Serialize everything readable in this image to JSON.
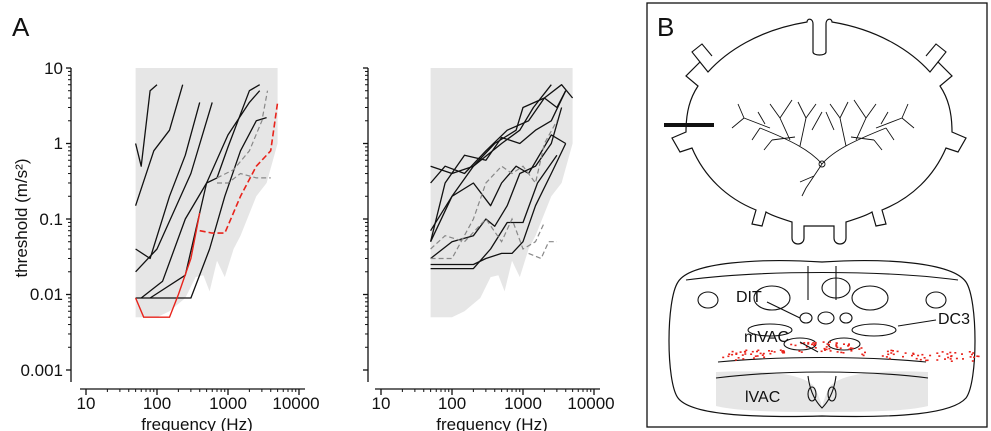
{
  "panel_a": {
    "letter": "A",
    "ylabel": "threshold (m/s²)",
    "xlabel": "frequency (Hz)",
    "y_tick_labels": [
      "10",
      "1",
      "0.1",
      "0.01",
      "0.001"
    ],
    "x_tick_labels": [
      "10",
      "100",
      "1000",
      "10000"
    ]
  },
  "panel_b": {
    "letter": "B",
    "labels": {
      "dit": "DIT",
      "dc3": "DC3",
      "mvac": "mVAC",
      "lvac": "lVAC"
    }
  },
  "colors": {
    "black": "#111111",
    "red": "#e8231b",
    "gray": "#888888",
    "shade": "#e6e6e6"
  },
  "chart_data": [
    {
      "type": "line",
      "title": "",
      "xlabel": "frequency (Hz)",
      "ylabel": "threshold (m/s²)",
      "x_scale": "log",
      "y_scale": "log",
      "xlim": [
        10,
        10000
      ],
      "ylim": [
        0.001,
        10
      ],
      "x_ticks": [
        10,
        100,
        1000,
        10000
      ],
      "y_ticks": [
        0.001,
        0.01,
        0.1,
        1,
        10
      ],
      "shaded_region": [
        [
          50,
          10
        ],
        [
          5000,
          10
        ],
        [
          5000,
          1
        ],
        [
          3500,
          0.3
        ],
        [
          2500,
          0.2
        ],
        [
          1500,
          0.06
        ],
        [
          1200,
          0.04
        ],
        [
          900,
          0.017
        ],
        [
          700,
          0.028
        ],
        [
          550,
          0.011
        ],
        [
          450,
          0.018
        ],
        [
          350,
          0.017
        ],
        [
          250,
          0.009
        ],
        [
          150,
          0.006
        ],
        [
          100,
          0.005
        ],
        [
          50,
          0.005
        ]
      ],
      "series": [
        {
          "style": "solid",
          "color": "#111111",
          "points": [
            [
              50,
              1.0
            ],
            [
              60,
              0.5
            ],
            [
              80,
              5.0
            ],
            [
              100,
              6.0
            ]
          ]
        },
        {
          "style": "solid",
          "color": "#111111",
          "points": [
            [
              50,
              0.15
            ],
            [
              90,
              0.8
            ],
            [
              150,
              1.5
            ],
            [
              230,
              6.0
            ]
          ]
        },
        {
          "style": "solid",
          "color": "#111111",
          "points": [
            [
              50,
              0.04
            ],
            [
              80,
              0.03
            ],
            [
              150,
              0.2
            ],
            [
              250,
              0.7
            ],
            [
              400,
              3.5
            ]
          ]
        },
        {
          "style": "solid",
          "color": "#111111",
          "points": [
            [
              50,
              0.02
            ],
            [
              100,
              0.04
            ],
            [
              300,
              0.4
            ],
            [
              600,
              3.5
            ]
          ]
        },
        {
          "style": "solid",
          "color": "#111111",
          "points": [
            [
              60,
              0.009
            ],
            [
              120,
              0.015
            ],
            [
              250,
              0.1
            ],
            [
              500,
              0.3
            ],
            [
              1000,
              1.3
            ],
            [
              2000,
              3.5
            ],
            [
              2800,
              5.0
            ]
          ]
        },
        {
          "style": "solid",
          "color": "#111111",
          "points": [
            [
              50,
              0.009
            ],
            [
              100,
              0.009
            ],
            [
              300,
              0.009
            ],
            [
              550,
              0.04
            ],
            [
              900,
              0.2
            ],
            [
              1500,
              0.8
            ],
            [
              2500,
              2.0
            ],
            [
              3500,
              2.2
            ]
          ]
        },
        {
          "style": "solid",
          "color": "#111111",
          "points": [
            [
              80,
              0.009
            ],
            [
              250,
              0.018
            ],
            [
              500,
              0.3
            ],
            [
              700,
              0.35
            ],
            [
              1000,
              0.9
            ],
            [
              2000,
              5.0
            ],
            [
              2800,
              6.0
            ]
          ]
        },
        {
          "style": "dashed",
          "color": "#888888",
          "points": [
            [
              700,
              0.35
            ],
            [
              1200,
              0.45
            ],
            [
              2000,
              0.8
            ],
            [
              3000,
              2.0
            ],
            [
              3600,
              5.0
            ]
          ]
        },
        {
          "style": "dashed",
          "color": "#888888",
          "points": [
            [
              700,
              0.3
            ],
            [
              1000,
              0.3
            ],
            [
              1500,
              0.4
            ],
            [
              2500,
              0.35
            ],
            [
              4000,
              0.35
            ]
          ]
        },
        {
          "style": "solid",
          "color": "#e8231b",
          "points": [
            [
              50,
              0.009
            ],
            [
              65,
              0.005
            ],
            [
              150,
              0.005
            ],
            [
              200,
              0.01
            ],
            [
              300,
              0.03
            ],
            [
              400,
              0.12
            ]
          ]
        },
        {
          "style": "dashed",
          "color": "#e8231b",
          "points": [
            [
              400,
              0.07
            ],
            [
              600,
              0.065
            ],
            [
              900,
              0.065
            ],
            [
              1500,
              0.2
            ],
            [
              2500,
              0.5
            ],
            [
              4000,
              0.8
            ],
            [
              5000,
              3.5
            ]
          ]
        }
      ]
    },
    {
      "type": "line",
      "title": "",
      "xlabel": "frequency (Hz)",
      "ylabel": "",
      "x_scale": "log",
      "y_scale": "log",
      "xlim": [
        10,
        10000
      ],
      "ylim": [
        0.001,
        10
      ],
      "x_ticks": [
        10,
        100,
        1000,
        10000
      ],
      "y_ticks": [
        0.001,
        0.01,
        0.1,
        1,
        10
      ],
      "shaded_region": [
        [
          50,
          10
        ],
        [
          5000,
          10
        ],
        [
          5000,
          1
        ],
        [
          3500,
          0.3
        ],
        [
          2500,
          0.2
        ],
        [
          1500,
          0.06
        ],
        [
          1200,
          0.04
        ],
        [
          900,
          0.017
        ],
        [
          700,
          0.028
        ],
        [
          550,
          0.011
        ],
        [
          450,
          0.018
        ],
        [
          350,
          0.017
        ],
        [
          250,
          0.009
        ],
        [
          150,
          0.006
        ],
        [
          100,
          0.005
        ],
        [
          50,
          0.005
        ]
      ],
      "series": [
        {
          "style": "solid",
          "color": "#111111",
          "points": [
            [
              50,
              0.5
            ],
            [
              100,
              0.4
            ],
            [
              200,
              0.5
            ],
            [
              500,
              1.0
            ],
            [
              900,
              1.5
            ],
            [
              1400,
              3.0
            ],
            [
              2500,
              6.0
            ]
          ]
        },
        {
          "style": "solid",
          "color": "#111111",
          "points": [
            [
              50,
              0.3
            ],
            [
              80,
              0.5
            ],
            [
              150,
              0.4
            ],
            [
              300,
              0.8
            ],
            [
              600,
              1.5
            ],
            [
              1200,
              2.0
            ],
            [
              2000,
              4.0
            ],
            [
              3500,
              6.0
            ],
            [
              5000,
              4.0
            ]
          ]
        },
        {
          "style": "solid",
          "color": "#111111",
          "points": [
            [
              50,
              0.07
            ],
            [
              100,
              0.2
            ],
            [
              200,
              0.5
            ],
            [
              400,
              1.0
            ],
            [
              800,
              1.5
            ],
            [
              1000,
              3.0
            ],
            [
              2000,
              4.0
            ],
            [
              3000,
              3.0
            ],
            [
              4000,
              5.0
            ]
          ]
        },
        {
          "style": "solid",
          "color": "#111111",
          "points": [
            [
              50,
              0.05
            ],
            [
              80,
              0.3
            ],
            [
              150,
              0.7
            ],
            [
              300,
              0.6
            ],
            [
              500,
              1.2
            ],
            [
              900,
              1.0
            ],
            [
              1500,
              1.5
            ],
            [
              2500,
              2.0
            ],
            [
              4000,
              5.0
            ]
          ]
        },
        {
          "style": "solid",
          "color": "#111111",
          "points": [
            [
              50,
              0.05
            ],
            [
              100,
              0.2
            ],
            [
              200,
              0.3
            ],
            [
              350,
              0.15
            ],
            [
              500,
              0.3
            ],
            [
              800,
              0.5
            ],
            [
              1200,
              0.4
            ],
            [
              2500,
              1.3
            ],
            [
              4000,
              1.0
            ]
          ]
        },
        {
          "style": "solid",
          "color": "#111111",
          "points": [
            [
              50,
              0.03
            ],
            [
              100,
              0.05
            ],
            [
              200,
              0.06
            ],
            [
              300,
              0.1
            ],
            [
              400,
              0.08
            ],
            [
              600,
              0.15
            ],
            [
              900,
              0.4
            ],
            [
              1500,
              0.5
            ],
            [
              2500,
              1.0
            ],
            [
              3500,
              3.0
            ]
          ]
        },
        {
          "style": "solid",
          "color": "#111111",
          "points": [
            [
              50,
              0.025
            ],
            [
              100,
              0.025
            ],
            [
              200,
              0.025
            ],
            [
              300,
              0.03
            ],
            [
              500,
              0.035
            ],
            [
              700,
              0.035
            ],
            [
              1000,
              0.05
            ],
            [
              1500,
              0.15
            ],
            [
              2500,
              0.4
            ],
            [
              4000,
              1.0
            ]
          ]
        },
        {
          "style": "solid",
          "color": "#111111",
          "points": [
            [
              50,
              0.022
            ],
            [
              200,
              0.022
            ],
            [
              350,
              0.04
            ],
            [
              600,
              0.09
            ],
            [
              1000,
              0.09
            ],
            [
              1600,
              0.3
            ],
            [
              3000,
              0.7
            ]
          ]
        },
        {
          "style": "dashed",
          "color": "#888888",
          "points": [
            [
              50,
              0.04
            ],
            [
              80,
              0.06
            ],
            [
              150,
              0.05
            ],
            [
              300,
              0.1
            ],
            [
              500,
              0.05
            ],
            [
              700,
              0.1
            ],
            [
              1000,
              0.04
            ],
            [
              1500,
              0.05
            ],
            [
              2000,
              0.09
            ]
          ]
        },
        {
          "style": "dashed",
          "color": "#888888",
          "points": [
            [
              50,
              0.03
            ],
            [
              100,
              0.03
            ],
            [
              200,
              0.1
            ],
            [
              300,
              0.3
            ],
            [
              500,
              0.5
            ],
            [
              700,
              0.4
            ],
            [
              1000,
              0.5
            ],
            [
              1500,
              0.3
            ],
            [
              2000,
              1.0
            ],
            [
              3000,
              2.0
            ]
          ]
        },
        {
          "style": "dashed",
          "color": "#888888",
          "points": [
            [
              1200,
              0.035
            ],
            [
              1800,
              0.03
            ],
            [
              2300,
              0.05
            ],
            [
              3000,
              0.05
            ]
          ]
        }
      ]
    }
  ]
}
